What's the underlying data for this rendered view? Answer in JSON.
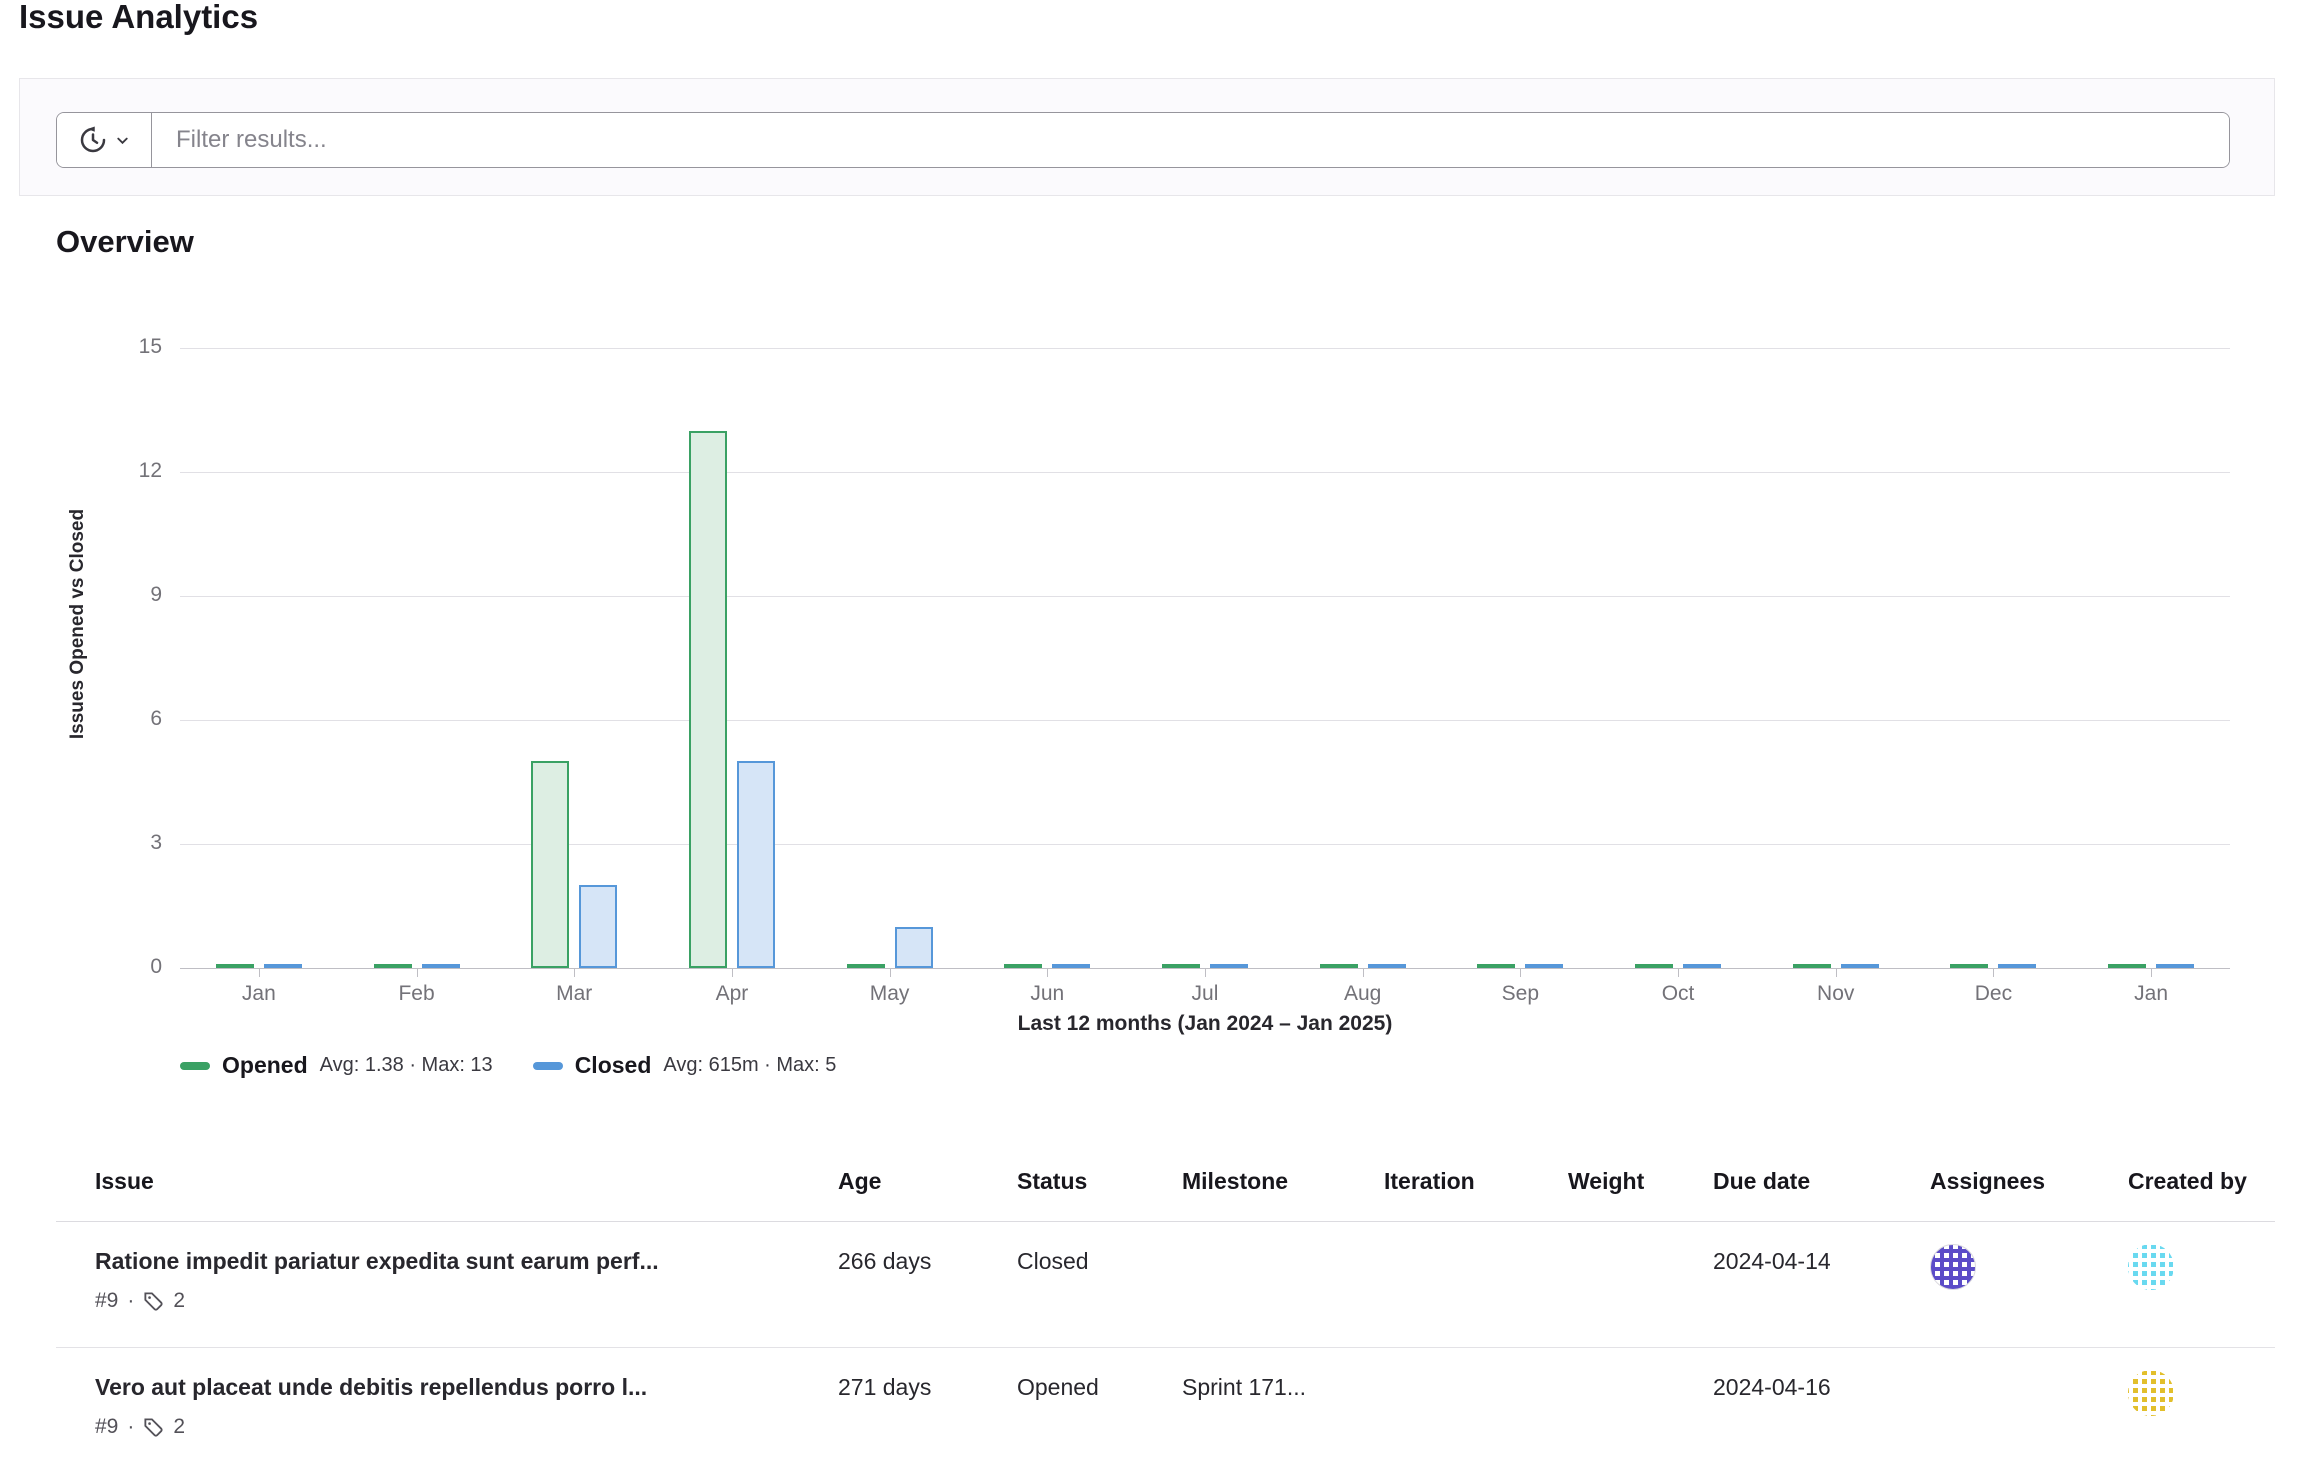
{
  "page": {
    "title": "Issue Analytics"
  },
  "filter": {
    "placeholder": "Filter results..."
  },
  "overview": {
    "heading": "Overview"
  },
  "chart_data": {
    "type": "bar",
    "title": "Overview",
    "ylabel": "Issues Opened vs Closed",
    "xlabel": "Last 12 months (Jan 2024 – Jan 2025)",
    "categories": [
      "Jan",
      "Feb",
      "Mar",
      "Apr",
      "May",
      "Jun",
      "Jul",
      "Aug",
      "Sep",
      "Oct",
      "Nov",
      "Dec",
      "Jan"
    ],
    "series": [
      {
        "name": "Opened",
        "stats": "Avg: 1.38 · Max: 13",
        "color": "#3aa164",
        "fill": "#ddeee3",
        "values": [
          0,
          0,
          5,
          13,
          0,
          0,
          0,
          0,
          0,
          0,
          0,
          0,
          0
        ]
      },
      {
        "name": "Closed",
        "stats": "Avg: 615m · Max: 5",
        "color": "#5697d9",
        "fill": "#d6e5f7",
        "values": [
          0,
          0,
          2,
          5,
          1,
          0,
          0,
          0,
          0,
          0,
          0,
          0,
          0
        ]
      }
    ],
    "yticks": [
      0,
      3,
      6,
      9,
      12,
      15
    ],
    "ylim": [
      0,
      15
    ],
    "grid": true,
    "legend_position": "bottom-left"
  },
  "table": {
    "headers": [
      "Issue",
      "Age",
      "Status",
      "Milestone",
      "Iteration",
      "Weight",
      "Due date",
      "Assignees",
      "Created by"
    ],
    "rows": [
      {
        "title": "Ratione impedit pariatur expedita sunt earum perf...",
        "ref": "#9",
        "separator": "·",
        "label_count": "2",
        "age": "266 days",
        "status": "Closed",
        "milestone": "",
        "iteration": "",
        "weight": "",
        "due_date": "2024-04-14",
        "assignee_avatar": {
          "base": "#ffffff",
          "pattern": "#5b4cc8",
          "border": "#dcdbe0"
        },
        "created_by_avatar": {
          "base": "#69d9f0",
          "pattern": "#ffffff",
          "border": "transparent"
        }
      },
      {
        "title": "Vero aut placeat unde debitis repellendus porro l...",
        "ref": "#9",
        "separator": "·",
        "label_count": "2",
        "age": "271 days",
        "status": "Opened",
        "milestone": "Sprint 171...",
        "iteration": "",
        "weight": "",
        "due_date": "2024-04-16",
        "assignee_avatar": null,
        "created_by_avatar": {
          "base": "#e2bf2b",
          "pattern": "#ffffff",
          "border": "transparent"
        }
      }
    ]
  }
}
